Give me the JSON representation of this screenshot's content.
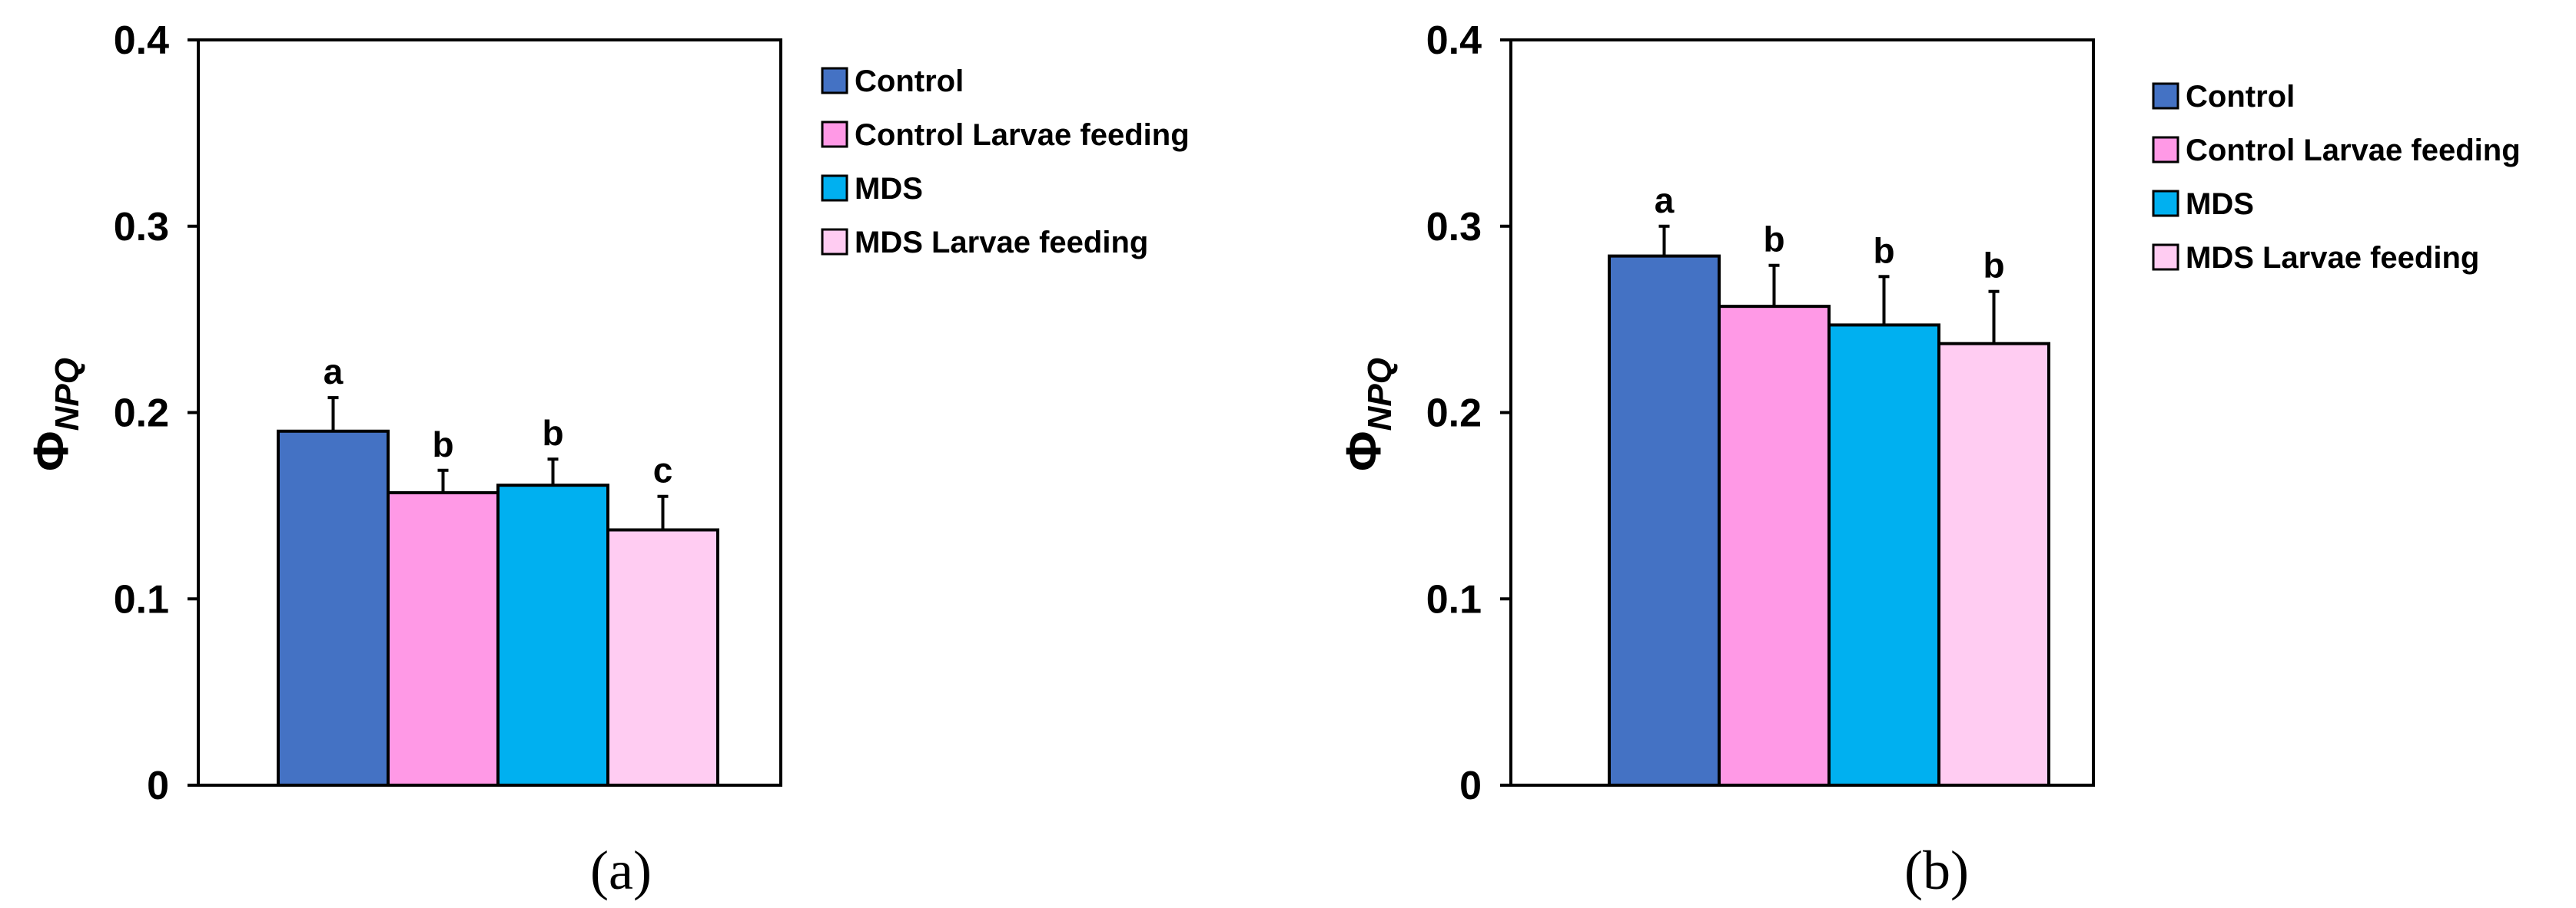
{
  "chart_data": [
    {
      "type": "bar",
      "panel_label": "(a)",
      "ylabel": {
        "symbol": "Φ",
        "subscript": "NPQ"
      },
      "ylim": [
        0,
        0.4
      ],
      "yticks": [
        0,
        0.1,
        0.2,
        0.3,
        0.4
      ],
      "ytick_labels": [
        "0",
        "0.1",
        "0.2",
        "0.3",
        "0.4"
      ],
      "categories": [
        "Control",
        "Control Larvae feeding",
        "MDS",
        "MDS Larvae feeding"
      ],
      "values": [
        0.19,
        0.157,
        0.161,
        0.137
      ],
      "errors": [
        0.018,
        0.012,
        0.014,
        0.018
      ],
      "significance": [
        "a",
        "b",
        "b",
        "c"
      ],
      "legend": [
        "Control",
        "Control Larvae feeding",
        "MDS",
        "MDS Larvae feeding"
      ],
      "legend_position": "right"
    },
    {
      "type": "bar",
      "panel_label": "(b)",
      "ylabel": {
        "symbol": "Φ",
        "subscript": "NPQ"
      },
      "ylim": [
        0,
        0.4
      ],
      "yticks": [
        0,
        0.1,
        0.2,
        0.3,
        0.4
      ],
      "ytick_labels": [
        "0",
        "0.1",
        "0.2",
        "0.3",
        "0.4"
      ],
      "categories": [
        "Control",
        "Control Larvae feeding",
        "MDS",
        "MDS Larvae feeding"
      ],
      "values": [
        0.284,
        0.257,
        0.247,
        0.237
      ],
      "errors": [
        0.016,
        0.022,
        0.026,
        0.028
      ],
      "significance": [
        "a",
        "b",
        "b",
        "b"
      ],
      "legend": [
        "Control",
        "Control Larvae feeding",
        "MDS",
        "MDS Larvae feeding"
      ],
      "legend_position": "right"
    }
  ],
  "colors": {
    "series": [
      "#4472c4",
      "#ff99e6",
      "#00b0f0",
      "#ffccf2"
    ],
    "axis": "#000000"
  }
}
